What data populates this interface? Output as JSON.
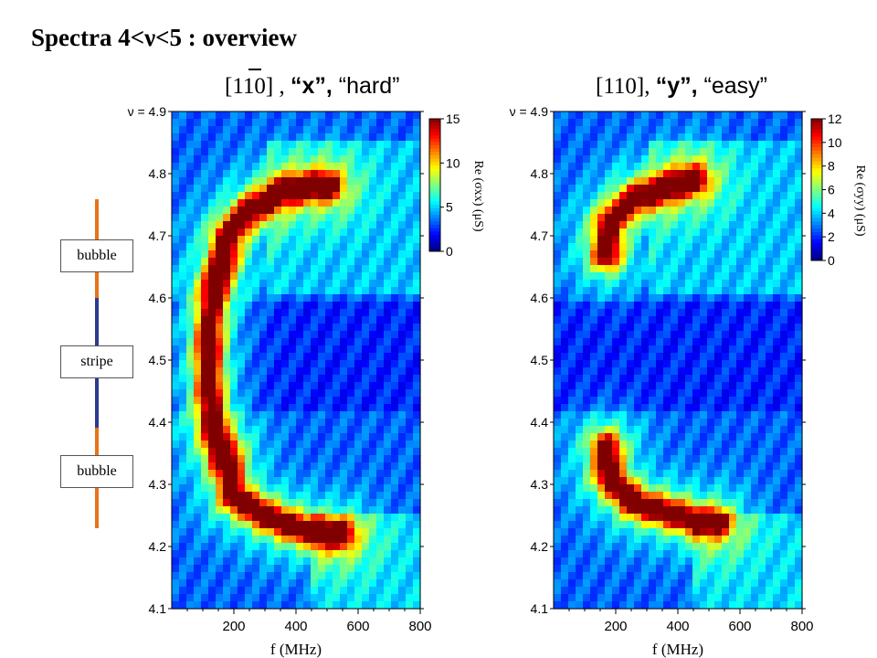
{
  "title": "Spectra 4<ν<5 : overview",
  "phase_bar": {
    "labels": [
      "bubble",
      "stripe",
      "bubble"
    ],
    "colors": {
      "bubble": "#e8731a",
      "stripe": "#2f3a8f"
    }
  },
  "chart_data": [
    {
      "type": "heatmap",
      "panel_title": {
        "direction": "[110]",
        "axis": "“x”, ",
        "ease": "“hard”"
      },
      "xlabel": "f (MHz)",
      "ylabel_prefix": "ν = ",
      "xlim": [
        0,
        800
      ],
      "ylim": [
        4.1,
        4.9
      ],
      "x_ticks": [
        "200",
        "400",
        "600",
        "800"
      ],
      "y_ticks": [
        "4.9",
        "4.8",
        "4.7",
        "4.6",
        "4.5",
        "4.4",
        "4.3",
        "4.2",
        "4.1"
      ],
      "colorbar": {
        "label": "Re (σxx) (μS)",
        "min": 0,
        "max": 15,
        "ticks": [
          "0",
          "5",
          "10",
          "15"
        ]
      },
      "ridges": [
        {
          "name": "upper bubble resonance",
          "points": [
            [
              170,
              4.67
            ],
            [
              180,
              4.7
            ],
            [
              250,
              4.74
            ],
            [
              350,
              4.77
            ],
            [
              460,
              4.78
            ],
            [
              500,
              4.78
            ]
          ]
        },
        {
          "name": "stripe connection",
          "points": [
            [
              170,
              4.67
            ],
            [
              140,
              4.62
            ],
            [
              120,
              4.55
            ],
            [
              120,
              4.45
            ],
            [
              140,
              4.38
            ],
            [
              170,
              4.33
            ]
          ]
        },
        {
          "name": "lower bubble resonance",
          "points": [
            [
              170,
              4.36
            ],
            [
              200,
              4.28
            ],
            [
              300,
              4.25
            ],
            [
              400,
              4.23
            ],
            [
              500,
              4.22
            ],
            [
              540,
              4.22
            ]
          ]
        }
      ]
    },
    {
      "type": "heatmap",
      "panel_title": {
        "direction": "[110]",
        "axis": "“y”, ",
        "ease": "“easy”"
      },
      "xlabel": "f (MHz)",
      "ylabel_prefix": "ν = ",
      "xlim": [
        0,
        800
      ],
      "ylim": [
        4.1,
        4.9
      ],
      "x_ticks": [
        "200",
        "400",
        "600",
        "800"
      ],
      "y_ticks": [
        "4.9",
        "4.8",
        "4.7",
        "4.6",
        "4.5",
        "4.4",
        "4.3",
        "4.2",
        "4.1"
      ],
      "colorbar": {
        "label": "Re (σyy) (μS)",
        "min": 0,
        "max": 12,
        "ticks": [
          "0",
          "2",
          "4",
          "6",
          "8",
          "10",
          "12"
        ]
      },
      "ridges": [
        {
          "name": "upper bubble resonance",
          "points": [
            [
              170,
              4.67
            ],
            [
              180,
              4.72
            ],
            [
              260,
              4.76
            ],
            [
              380,
              4.78
            ],
            [
              450,
              4.79
            ]
          ]
        },
        {
          "name": "lower bubble resonance",
          "points": [
            [
              170,
              4.36
            ],
            [
              180,
              4.31
            ],
            [
              260,
              4.27
            ],
            [
              400,
              4.25
            ],
            [
              470,
              4.24
            ],
            [
              520,
              4.24
            ]
          ]
        }
      ]
    }
  ]
}
